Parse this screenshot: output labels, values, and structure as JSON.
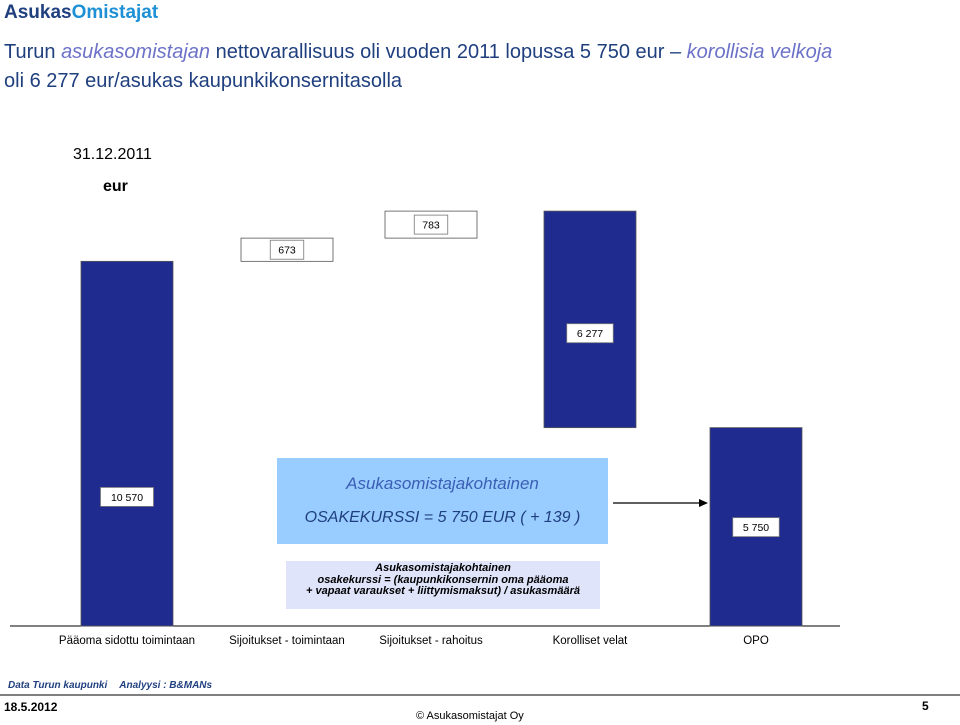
{
  "header": {
    "logo_part1": "Asukas",
    "logo_part2": "Omistajat"
  },
  "title": {
    "part1": "Turun ",
    "part2": "asukasomistajan",
    "part3": " nettovarallisuus oli vuoden 2011 lopussa 5 750 eur – ",
    "part4": "korollisia velkoja",
    "part5": "oli 6 277  eur/asukas",
    "part6": " kaupunkikonsernitasolla"
  },
  "chart_meta": {
    "date": "31.12.2011",
    "unit": "eur"
  },
  "chart_data": {
    "type": "bar",
    "subtype": "waterfall",
    "categories": [
      "Pääoma sidottu toimintaan",
      "Sijoitukset - toimintaan",
      "Sijoitukset - rahoitus",
      "Korolliset velat",
      "OPO"
    ],
    "values": [
      10570,
      673,
      783,
      -6277,
      5750
    ],
    "data_labels": [
      "10 570",
      "673",
      "783",
      "6 277",
      "5 750"
    ],
    "bar_colors": [
      "#1f2b8f",
      "#ffffff",
      "#ffffff",
      "#1f2b8f",
      "#1f2b8f"
    ]
  },
  "infobox": {
    "title": "Asukasomistajakohtainen",
    "formula": "OSAKEKURSSI   = 5 750 EUR ( + 139  )"
  },
  "formula_box": {
    "line1": "Asukasomistajakohtainen",
    "line2": "osakekurssi = (kaupunkikonsernin oma pääoma",
    "line3": "+ vapaat varaukset + liittymismaksut) / asukasmäärä"
  },
  "footer": {
    "source": "Data Turun kaupunki",
    "analysis": "Analyysi : B&MANs",
    "date": "18.5.2012",
    "copyright": "© Asukasomistajat Oy",
    "page": "5"
  }
}
